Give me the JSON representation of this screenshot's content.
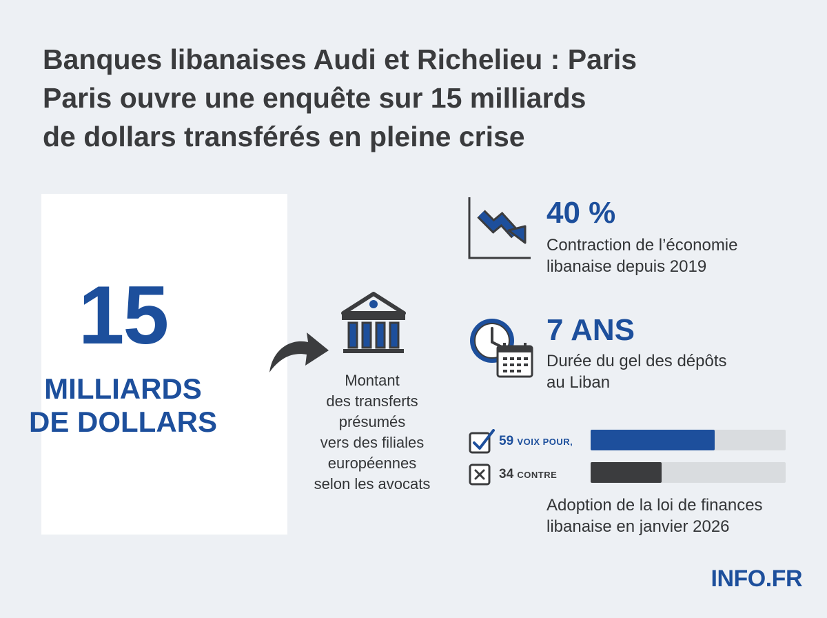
{
  "headline": {
    "lines": [
      "Banques libanaises Audi et Richelieu : Paris",
      "Paris ouvre une enquête sur 15 milliards",
      "de dollars transférés en pleine crise"
    ]
  },
  "key_figure": {
    "number": "15",
    "unit_lines": [
      "MILLIARDS",
      "DE DOLLARS"
    ],
    "description_lines": [
      "Montant",
      "des transferts",
      "présumés",
      "vers des filiales",
      "européennes",
      "selon les avocats"
    ]
  },
  "stats": [
    {
      "icon": "declining-chart-icon",
      "value": "40 %",
      "label_lines": [
        "Contraction de l’économie",
        "libanaise depuis 2019"
      ]
    },
    {
      "icon": "clock-calendar-icon",
      "value": "7 ANS",
      "label_lines": [
        "Durée du gel des dépôts",
        "au Liban"
      ]
    }
  ],
  "vote": {
    "for_count": "59",
    "for_label": "VOIX POUR,",
    "against_count": "34",
    "against_label": "CONTRE",
    "for_value": 59,
    "against_value": 34,
    "for_color": "#1d4f9c",
    "against_color": "#3b3c3e",
    "track_color": "#d9dcdf",
    "caption_lines": [
      "Adoption de la loi de finances",
      "libanaise en janvier 2026"
    ]
  },
  "brand": "INFO.FR",
  "colors": {
    "accent": "#1d4f9c",
    "background": "#edf0f4",
    "text": "#333537"
  }
}
